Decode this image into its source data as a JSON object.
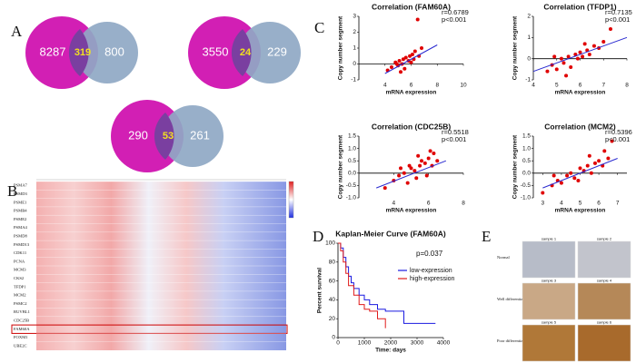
{
  "panel_labels": [
    "A",
    "B",
    "C",
    "D",
    "E"
  ],
  "venn": [
    {
      "left": 8287,
      "overlap": 319,
      "right": 800
    },
    {
      "left": 3550,
      "overlap": 24,
      "right": 229
    },
    {
      "left": 290,
      "overlap": 53,
      "right": 261
    }
  ],
  "heatmap": {
    "genes": [
      "PSMA7",
      "PSMD3",
      "PSME1",
      "PSMB4",
      "PSME2",
      "PSMA4",
      "PSMD8",
      "PSMD13",
      "CDK11",
      "PCNA",
      "MCM3",
      "CKS2",
      "TFDP1",
      "MCM2",
      "PSMC2",
      "RUVBL1",
      "CDC25B",
      "FAM60A",
      "FOXM1",
      "UBE2C"
    ]
  },
  "chart_data": [
    {
      "type": "scatter",
      "title": "Correlation (FAM60A)",
      "xlabel": "mRNA expression",
      "ylabel": "Copy number segment",
      "annotations": [
        "r=0.6789",
        "p<0.001"
      ],
      "color": "#e00000",
      "fit_color": "#2a2ad0",
      "xlim": [
        2,
        10
      ],
      "xticks": [
        4,
        6,
        8,
        10
      ],
      "ylim": [
        -1,
        3
      ],
      "yticks": [
        -1,
        0,
        1,
        2,
        3
      ],
      "x": [
        4.2,
        4.5,
        4.8,
        5.0,
        5.1,
        5.3,
        5.4,
        5.5,
        5.6,
        5.8,
        5.9,
        6.0,
        6.1,
        6.2,
        6.3,
        6.5,
        6.8,
        6.6,
        5.2,
        4.9
      ],
      "values": [
        -0.4,
        -0.2,
        0.1,
        -0.1,
        0.2,
        0.0,
        0.3,
        -0.3,
        0.4,
        0.2,
        0.5,
        0.1,
        0.6,
        0.3,
        0.8,
        2.8,
        1.0,
        0.5,
        -0.5,
        0.0
      ],
      "fit": {
        "x": [
          4,
          8
        ],
        "values": [
          -0.6,
          1.2
        ]
      }
    },
    {
      "type": "scatter",
      "title": "Correlation (TFDP1)",
      "xlabel": "mRNA expression",
      "ylabel": "Copy number segment",
      "annotations": [
        "r=0.7135",
        "p<0.001"
      ],
      "color": "#e00000",
      "fit_color": "#2a2ad0",
      "xlim": [
        4,
        8
      ],
      "xticks": [
        4,
        5,
        6,
        7,
        8
      ],
      "ylim": [
        -1,
        2
      ],
      "yticks": [
        -1,
        0,
        1,
        2
      ],
      "x": [
        4.6,
        4.8,
        5.0,
        5.2,
        5.3,
        5.5,
        5.6,
        5.8,
        5.9,
        6.0,
        6.1,
        6.3,
        6.4,
        6.6,
        6.8,
        7.0,
        7.3,
        5.4,
        6.2,
        4.9
      ],
      "values": [
        -0.6,
        -0.3,
        -0.5,
        0.0,
        -0.2,
        0.1,
        -0.4,
        0.2,
        0.0,
        0.3,
        0.1,
        0.4,
        0.2,
        0.6,
        0.5,
        0.8,
        1.4,
        -0.8,
        0.7,
        0.1
      ],
      "fit": {
        "x": [
          4,
          8
        ],
        "values": [
          -0.6,
          1.0
        ]
      }
    },
    {
      "type": "scatter",
      "title": "Correlation (CDC25B)",
      "xlabel": "mRNA expression",
      "ylabel": "Copy number segment",
      "annotations": [
        "r=0.5518",
        "p<0.001"
      ],
      "color": "#e00000",
      "fit_color": "#2a2ad0",
      "xlim": [
        2,
        8
      ],
      "xticks": [
        4,
        6,
        8
      ],
      "ylim": [
        -1,
        1.5
      ],
      "yticks": [
        {
          "value": -1,
          "label": "-1.0"
        },
        -0.5,
        {
          "value": 0,
          "label": "0.0"
        },
        0.5,
        {
          "value": 1,
          "label": "1.0"
        },
        1.5
      ],
      "x": [
        3.5,
        4.0,
        4.3,
        4.6,
        4.8,
        5.0,
        5.2,
        5.3,
        5.5,
        5.6,
        5.8,
        6.0,
        6.2,
        6.3,
        6.5,
        4.9,
        5.4,
        5.9,
        6.1,
        4.4
      ],
      "values": [
        -0.6,
        -0.3,
        -0.1,
        0.0,
        -0.4,
        0.2,
        0.1,
        -0.2,
        0.3,
        0.5,
        0.4,
        0.6,
        0.3,
        0.8,
        0.5,
        0.3,
        0.7,
        -0.1,
        0.9,
        0.2
      ],
      "fit": {
        "x": [
          3,
          7
        ],
        "values": [
          -0.6,
          0.5
        ]
      }
    },
    {
      "type": "scatter",
      "title": "Correlation (MCM2)",
      "xlabel": "mRNA expression",
      "ylabel": "Copy number segment",
      "annotations": [
        "r=0.5396",
        "p<0.001"
      ],
      "color": "#e00000",
      "fit_color": "#2a2ad0",
      "xlim": [
        2.5,
        7.5
      ],
      "xticks": [
        3,
        4,
        5,
        6,
        7
      ],
      "ylim": [
        -1,
        1.5
      ],
      "yticks": [
        {
          "value": -1,
          "label": "-1.0"
        },
        -0.5,
        {
          "value": 0,
          "label": "0.0"
        },
        0.5,
        {
          "value": 1,
          "label": "1.0"
        },
        1.5
      ],
      "x": [
        3.0,
        3.5,
        3.8,
        4.0,
        4.3,
        4.5,
        4.7,
        5.0,
        5.2,
        5.4,
        5.6,
        5.8,
        6.0,
        6.2,
        6.5,
        6.7,
        4.9,
        5.5,
        6.3,
        3.6
      ],
      "values": [
        -0.8,
        -0.5,
        -0.3,
        -0.4,
        -0.1,
        0.0,
        -0.2,
        0.2,
        0.1,
        0.3,
        0.0,
        0.4,
        0.5,
        0.3,
        0.6,
        1.3,
        -0.3,
        0.7,
        0.9,
        -0.1
      ],
      "fit": {
        "x": [
          3,
          7
        ],
        "values": [
          -0.6,
          0.6
        ]
      }
    },
    {
      "type": "step",
      "title": "Kaplan-Meier Curve (FAM60A)",
      "xlabel": "Time: days",
      "ylabel": "Percent survival",
      "annotations": [
        "p=0.037"
      ],
      "xlim": [
        0,
        4000
      ],
      "xticks": [
        0,
        1000,
        2000,
        3000,
        4000
      ],
      "ylim": [
        0,
        100
      ],
      "yticks": [
        0,
        20,
        40,
        60,
        80,
        100
      ],
      "series": [
        {
          "name": "low-expression",
          "color": "#1a1ae0",
          "x": [
            0,
            100,
            200,
            300,
            400,
            500,
            600,
            800,
            1000,
            1200,
            1500,
            1800,
            2500,
            3700
          ],
          "values": [
            100,
            95,
            85,
            75,
            65,
            58,
            52,
            45,
            40,
            35,
            30,
            28,
            15,
            15
          ]
        },
        {
          "name": "high-expression",
          "color": "#e01a1a",
          "x": [
            0,
            100,
            200,
            300,
            400,
            600,
            800,
            1000,
            1200,
            1500,
            1800
          ],
          "values": [
            100,
            92,
            80,
            68,
            55,
            45,
            35,
            30,
            28,
            20,
            10
          ]
        }
      ]
    }
  ],
  "ihc": {
    "rows": [
      "Normal",
      "Well differentiated",
      "Poor differentiated"
    ],
    "samples": [
      "sample 1",
      "sample 2",
      "sample 3",
      "sample 4",
      "sample 5",
      "sample 6"
    ]
  }
}
